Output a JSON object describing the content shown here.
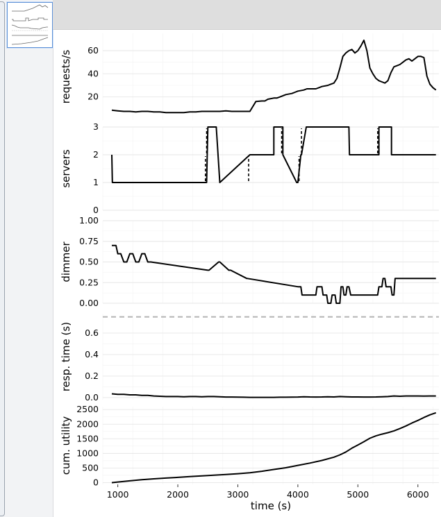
{
  "thumbnail": {
    "label": ""
  },
  "chart_data": [
    {
      "type": "line",
      "ylabel": "requests/s",
      "ylim": [
        0,
        75
      ],
      "yticks": [
        20,
        40,
        60
      ],
      "x": [
        900,
        1000,
        1100,
        1200,
        1300,
        1400,
        1500,
        1600,
        1700,
        1800,
        1900,
        2000,
        2100,
        2200,
        2300,
        2400,
        2500,
        2600,
        2700,
        2800,
        2900,
        3000,
        3100,
        3200,
        3300,
        3400,
        3450,
        3500,
        3600,
        3650,
        3700,
        3800,
        3900,
        3950,
        4000,
        4100,
        4150,
        4200,
        4300,
        4400,
        4500,
        4550,
        4600,
        4650,
        4700,
        4750,
        4800,
        4850,
        4900,
        4950,
        5000,
        5050,
        5100,
        5150,
        5200,
        5250,
        5300,
        5350,
        5400,
        5450,
        5500,
        5550,
        5600,
        5650,
        5700,
        5750,
        5800,
        5850,
        5900,
        5950,
        6000,
        6050,
        6100,
        6150,
        6200,
        6250,
        6300
      ],
      "series": [
        {
          "values": [
            8.5,
            8,
            7.5,
            7.5,
            7,
            7.5,
            7.5,
            7,
            7,
            6.5,
            6.5,
            6.5,
            6.5,
            7,
            7,
            7.5,
            7.5,
            7.5,
            7.5,
            8,
            7.5,
            7.5,
            7.5,
            7.5,
            16,
            16.5,
            16.5,
            18,
            19,
            19,
            20,
            22,
            23,
            24,
            25,
            26,
            27,
            27,
            27,
            29,
            30,
            31,
            32,
            36,
            45,
            55,
            58,
            60,
            61,
            58,
            60,
            64,
            69,
            60,
            45,
            40,
            36,
            34,
            33,
            32,
            34,
            41,
            46,
            47,
            48,
            50,
            52,
            53,
            51,
            53,
            55,
            55,
            54,
            38,
            31,
            28,
            26
          ]
        }
      ],
      "grid": true
    },
    {
      "type": "line",
      "ylabel": "servers",
      "ylim": [
        0,
        3
      ],
      "yticks": [
        0,
        1,
        2,
        3
      ],
      "x": [
        900,
        910,
        2480,
        2500,
        2640,
        2700,
        3200,
        3600,
        3600,
        3750,
        3750,
        3980,
        4000,
        4050,
        4060,
        4140,
        4850,
        4860,
        5350,
        5350,
        5560,
        5560,
        6300
      ],
      "series": [
        {
          "values": [
            2,
            1,
            1,
            3,
            3,
            1,
            2,
            2,
            3,
            3,
            2,
            1,
            1,
            2,
            2,
            3,
            3,
            2,
            2,
            3,
            3,
            2,
            2
          ]
        }
      ],
      "dashed_markers": [
        {
          "x": 2460,
          "from": 1.05,
          "to": 1.95
        },
        {
          "x": 2480,
          "from": 2.05,
          "to": 2.95
        },
        {
          "x": 3180,
          "from": 1.05,
          "to": 1.95
        },
        {
          "x": 3730,
          "from": 2.05,
          "to": 2.95
        },
        {
          "x": 4020,
          "from": 1.05,
          "to": 1.95
        },
        {
          "x": 4060,
          "from": 2.05,
          "to": 2.95
        },
        {
          "x": 5330,
          "from": 2.05,
          "to": 2.95
        }
      ],
      "grid": true
    },
    {
      "type": "line",
      "ylabel": "dimmer",
      "ylim": [
        0,
        1
      ],
      "yticks": [
        "0.00",
        "0.25",
        "0.50",
        "0.75",
        "1.00"
      ],
      "x": [
        900,
        970,
        1000,
        1050,
        1100,
        1150,
        1200,
        1250,
        1300,
        1350,
        1400,
        1450,
        1500,
        1550,
        2500,
        2520,
        2680,
        2700,
        2850,
        2880,
        3150,
        3160,
        4000,
        4020,
        4050,
        4070,
        4300,
        4320,
        4400,
        4420,
        4480,
        4500,
        4550,
        4570,
        4620,
        4640,
        4700,
        4720,
        4750,
        4770,
        4800,
        4820,
        4850,
        4880,
        5330,
        5350,
        5400,
        5420,
        5450,
        5470,
        5550,
        5570,
        5600,
        5620,
        6300
      ],
      "series": [
        {
          "values": [
            0.7,
            0.7,
            0.6,
            0.6,
            0.5,
            0.5,
            0.6,
            0.6,
            0.5,
            0.5,
            0.6,
            0.6,
            0.5,
            0.5,
            0.4,
            0.4,
            0.5,
            0.5,
            0.4,
            0.4,
            0.3,
            0.3,
            0.2,
            0.2,
            0.2,
            0.1,
            0.1,
            0.2,
            0.2,
            0.1,
            0.1,
            0,
            0,
            0.1,
            0.1,
            0,
            0,
            0.2,
            0.2,
            0.1,
            0.1,
            0.2,
            0.2,
            0.1,
            0.1,
            0.2,
            0.2,
            0.3,
            0.3,
            0.2,
            0.2,
            0.1,
            0.1,
            0.3,
            0.3
          ]
        }
      ],
      "grid": true
    },
    {
      "type": "line",
      "ylabel": "resp. time (s)",
      "ylim": [
        -0.02,
        0.78
      ],
      "yticks": [
        "0.0",
        "0.2",
        "0.4",
        "0.6"
      ],
      "threshold": 0.75,
      "x": [
        900,
        1000,
        1100,
        1200,
        1300,
        1400,
        1500,
        1600,
        1700,
        1800,
        1900,
        2000,
        2100,
        2200,
        2300,
        2400,
        2500,
        2600,
        2700,
        2800,
        2900,
        3000,
        3100,
        3200,
        3300,
        3400,
        3500,
        3600,
        3700,
        3800,
        3900,
        4000,
        4100,
        4200,
        4300,
        4400,
        4500,
        4600,
        4700,
        4800,
        4900,
        5000,
        5100,
        5200,
        5300,
        5400,
        5500,
        5600,
        5700,
        5800,
        5900,
        6000,
        6100,
        6200,
        6300
      ],
      "series": [
        {
          "values": [
            0.035,
            0.03,
            0.03,
            0.025,
            0.025,
            0.02,
            0.02,
            0.015,
            0.012,
            0.01,
            0.01,
            0.01,
            0.008,
            0.01,
            0.01,
            0.008,
            0.01,
            0.01,
            0.008,
            0.005,
            0.005,
            0.004,
            0.003,
            0.002,
            0.002,
            0.002,
            0.002,
            0.002,
            0.003,
            0.003,
            0.004,
            0.005,
            0.008,
            0.006,
            0.005,
            0.006,
            0.008,
            0.006,
            0.01,
            0.008,
            0.006,
            0.006,
            0.005,
            0.005,
            0.006,
            0.008,
            0.01,
            0.015,
            0.012,
            0.015,
            0.015,
            0.015,
            0.014,
            0.015,
            0.015
          ]
        }
      ],
      "grid": true
    },
    {
      "type": "line",
      "ylabel": "cum. utility",
      "xlabel": "time (s)",
      "ylim": [
        -60,
        2600
      ],
      "yticks": [
        0,
        500,
        1000,
        1500,
        2000,
        2500
      ],
      "xlim": [
        750,
        6350
      ],
      "xticks": [
        1000,
        2000,
        3000,
        4000,
        5000,
        6000
      ],
      "x": [
        900,
        1000,
        1200,
        1400,
        1600,
        1800,
        2000,
        2200,
        2400,
        2600,
        2800,
        3000,
        3200,
        3400,
        3600,
        3800,
        4000,
        4200,
        4400,
        4600,
        4700,
        4800,
        4900,
        5000,
        5100,
        5200,
        5300,
        5400,
        5500,
        5600,
        5700,
        5800,
        5900,
        6000,
        6100,
        6200,
        6300
      ],
      "series": [
        {
          "values": [
            0,
            20,
            60,
            100,
            130,
            155,
            180,
            205,
            230,
            255,
            280,
            305,
            340,
            390,
            450,
            510,
            590,
            670,
            760,
            870,
            950,
            1050,
            1180,
            1290,
            1400,
            1520,
            1600,
            1660,
            1710,
            1770,
            1850,
            1940,
            2040,
            2130,
            2230,
            2320,
            2390
          ]
        }
      ],
      "grid": true
    }
  ]
}
